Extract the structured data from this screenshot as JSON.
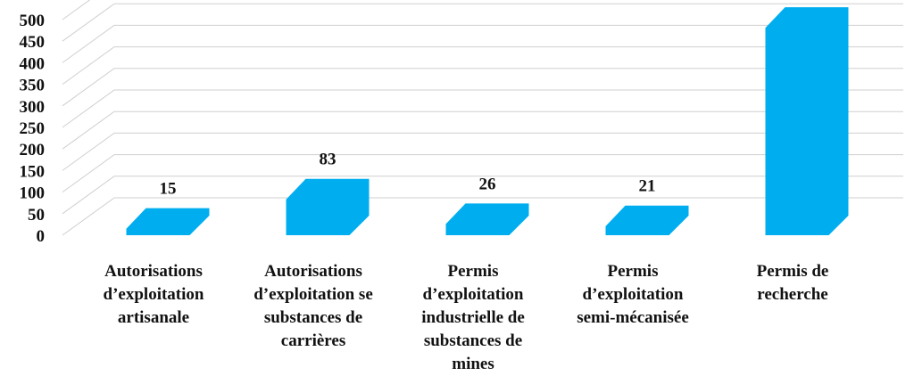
{
  "chart_data": {
    "type": "bar",
    "categories": [
      [
        "Autorisations",
        "d’exploitation",
        "artisanale"
      ],
      [
        "Autorisations",
        "d’exploitation se",
        "substances de",
        "carrières"
      ],
      [
        "Permis",
        "d’exploitation",
        "industrielle de",
        "substances de",
        "mines"
      ],
      [
        "Permis",
        "d’exploitation",
        "semi-mécanisée"
      ],
      [
        "Permis de",
        "recherche"
      ]
    ],
    "values": [
      15,
      83,
      26,
      21,
      481
    ],
    "ylim": [
      0,
      500
    ],
    "yticks": [
      0,
      50,
      100,
      150,
      200,
      250,
      300,
      350,
      400,
      450,
      500
    ],
    "bar_color": "#00AEEF",
    "grid": true,
    "legend": "none",
    "title": "",
    "xlabel": "",
    "ylabel": ""
  }
}
